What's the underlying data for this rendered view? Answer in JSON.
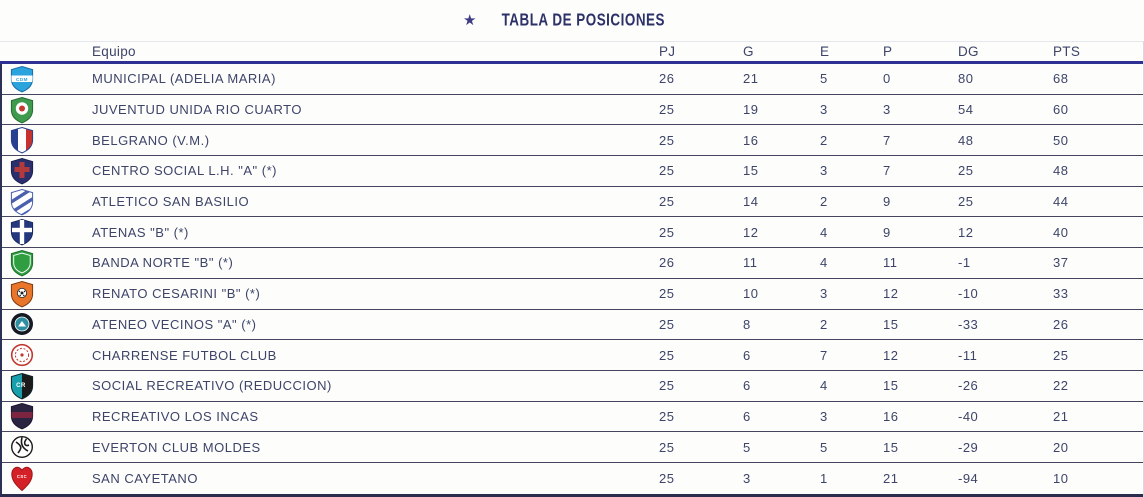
{
  "title": {
    "star": "★",
    "text": "TABLA DE POSICIONES"
  },
  "colors": {
    "accent_rule": "#2e3192",
    "text": "#3d4468",
    "title_text": "#2c3168",
    "star": "#3f3c85",
    "row_border": "#45455f"
  },
  "table": {
    "columns": [
      {
        "key": "team",
        "label": "Equipo"
      },
      {
        "key": "pj",
        "label": "PJ"
      },
      {
        "key": "g",
        "label": "G"
      },
      {
        "key": "e",
        "label": "E"
      },
      {
        "key": "p",
        "label": "P"
      },
      {
        "key": "dg",
        "label": "DG"
      },
      {
        "key": "pts",
        "label": "PTS"
      }
    ],
    "rows": [
      {
        "team": "MUNICIPAL (ADELIA MARIA)",
        "pj": 26,
        "g": 21,
        "e": 5,
        "p": 0,
        "dg": 80,
        "pts": 68,
        "crest": {
          "name": "municipal-adelia-maria-crest",
          "shape": "shield-band",
          "colors": [
            "#2ba3dc",
            "#ffffff"
          ],
          "label": "CDM"
        }
      },
      {
        "team": "JUVENTUD UNIDA RIO CUARTO",
        "pj": 25,
        "g": 19,
        "e": 3,
        "p": 3,
        "dg": 54,
        "pts": 60,
        "crest": {
          "name": "juventud-unida-crest",
          "shape": "shield-center",
          "colors": [
            "#3f9a4d",
            "#ffffff",
            "#c43b33"
          ]
        }
      },
      {
        "team": "BELGRANO (V.M.)",
        "pj": 25,
        "g": 16,
        "e": 2,
        "p": 7,
        "dg": 48,
        "pts": 50,
        "crest": {
          "name": "belgrano-crest",
          "shape": "shield-vstripes",
          "colors": [
            "#27408f",
            "#ffffff",
            "#c8322e"
          ]
        }
      },
      {
        "team": "CENTRO SOCIAL L.H. \"A\" (*)",
        "pj": 25,
        "g": 15,
        "e": 3,
        "p": 7,
        "dg": 25,
        "pts": 48,
        "crest": {
          "name": "centro-social-crest",
          "shape": "shield-cross",
          "colors": [
            "#2a2f6e",
            "#b23a3a"
          ]
        }
      },
      {
        "team": "ATLETICO SAN BASILIO",
        "pj": 25,
        "g": 14,
        "e": 2,
        "p": 9,
        "dg": 25,
        "pts": 44,
        "crest": {
          "name": "atletico-san-basilio-crest",
          "shape": "shield-diag",
          "colors": [
            "#ffffff",
            "#4a5fae"
          ]
        }
      },
      {
        "team": "ATENAS \"B\" (*)",
        "pj": 25,
        "g": 12,
        "e": 4,
        "p": 9,
        "dg": 12,
        "pts": 40,
        "crest": {
          "name": "atenas-crest",
          "shape": "shield-whitecross",
          "colors": [
            "#23387e",
            "#ffffff"
          ]
        }
      },
      {
        "team": "BANDA NORTE \"B\" (*)",
        "pj": 26,
        "g": 11,
        "e": 4,
        "p": 11,
        "dg": -1,
        "pts": 37,
        "crest": {
          "name": "banda-norte-crest",
          "shape": "shield-inner",
          "colors": [
            "#2e9e41",
            "#ffffff"
          ]
        }
      },
      {
        "team": "RENATO CESARINI \"B\" (*)",
        "pj": 25,
        "g": 10,
        "e": 3,
        "p": 12,
        "dg": -10,
        "pts": 33,
        "crest": {
          "name": "renato-cesarini-crest",
          "shape": "shield-ball",
          "colors": [
            "#e8752a",
            "#ffffff",
            "#222222"
          ]
        }
      },
      {
        "team": "ATENEO VECINOS \"A\" (*)",
        "pj": 25,
        "g": 8,
        "e": 2,
        "p": 15,
        "dg": -33,
        "pts": 26,
        "crest": {
          "name": "ateneo-vecinos-crest",
          "shape": "circle-center",
          "colors": [
            "#161a24",
            "#2e8fa3",
            "#ffffff"
          ]
        }
      },
      {
        "team": "CHARRENSE FUTBOL CLUB",
        "pj": 25,
        "g": 6,
        "e": 7,
        "p": 12,
        "dg": -11,
        "pts": 25,
        "crest": {
          "name": "charrense-crest",
          "shape": "circle-ring",
          "colors": [
            "#ffffff",
            "#c0392f"
          ]
        }
      },
      {
        "team": "SOCIAL RECREATIVO (REDUCCION)",
        "pj": 25,
        "g": 6,
        "e": 4,
        "p": 15,
        "dg": -26,
        "pts": 22,
        "crest": {
          "name": "social-recreativo-crest",
          "shape": "shield-split",
          "colors": [
            "#17a0ac",
            "#1b1b1b"
          ],
          "label": "CR"
        }
      },
      {
        "team": "RECREATIVO LOS INCAS",
        "pj": 25,
        "g": 6,
        "e": 3,
        "p": 16,
        "dg": -40,
        "pts": 21,
        "crest": {
          "name": "recreativo-los-incas-crest",
          "shape": "shield-band2",
          "colors": [
            "#2a2440",
            "#7c2440"
          ]
        }
      },
      {
        "team": "EVERTON CLUB MOLDES",
        "pj": 25,
        "g": 5,
        "e": 5,
        "p": 15,
        "dg": -29,
        "pts": 20,
        "crest": {
          "name": "everton-moldes-crest",
          "shape": "circle-swirl",
          "colors": [
            "#ffffff",
            "#1b1b1b"
          ]
        }
      },
      {
        "team": "SAN CAYETANO",
        "pj": 25,
        "g": 3,
        "e": 1,
        "p": 21,
        "dg": -94,
        "pts": 10,
        "crest": {
          "name": "san-cayetano-crest",
          "shape": "heart",
          "colors": [
            "#d42027",
            "#ffffff"
          ],
          "label": "CSC"
        }
      }
    ]
  }
}
